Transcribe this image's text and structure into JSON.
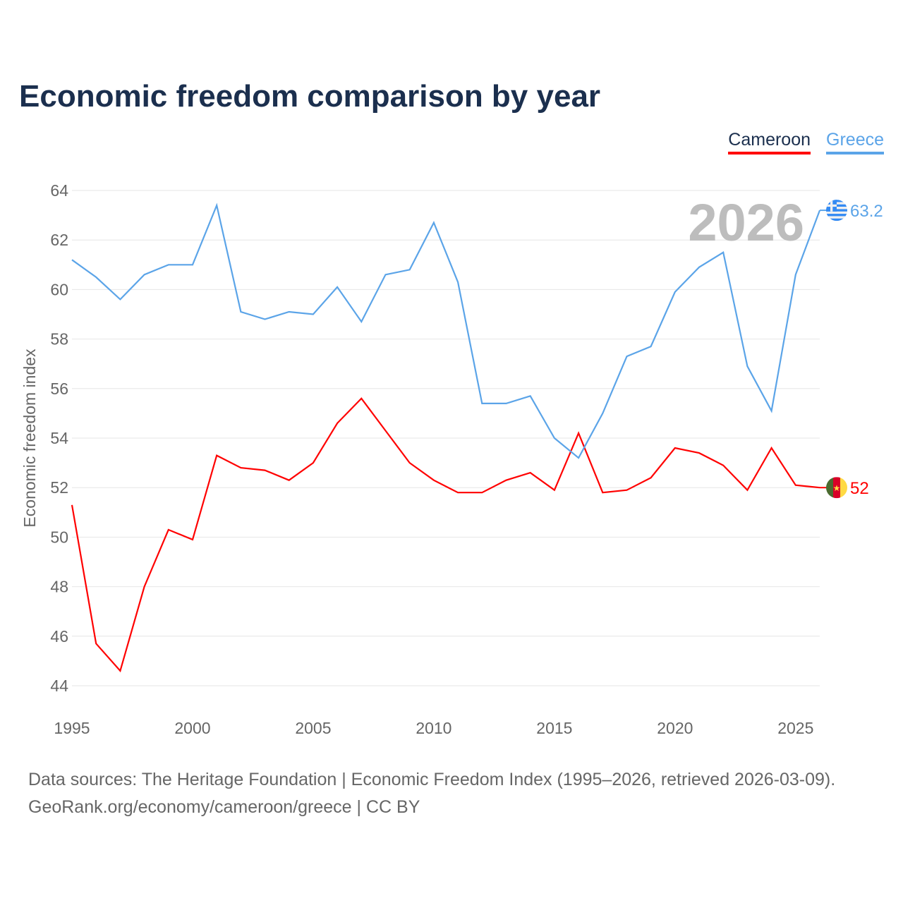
{
  "chart_data": {
    "type": "line",
    "title": "Economic freedom comparison by year",
    "xlabel": "",
    "ylabel": "Economic freedom index",
    "ylim": [
      44,
      64
    ],
    "xlim": [
      1995,
      2026
    ],
    "yticks": [
      44,
      46,
      48,
      50,
      52,
      54,
      56,
      58,
      60,
      62,
      64
    ],
    "xticks": [
      1995,
      2000,
      2005,
      2010,
      2015,
      2020,
      2025
    ],
    "grid": true,
    "legend_position": "top-right",
    "year_label": "2026",
    "x": [
      1995,
      1996,
      1997,
      1998,
      1999,
      2000,
      2001,
      2002,
      2003,
      2004,
      2005,
      2006,
      2007,
      2008,
      2009,
      2010,
      2011,
      2012,
      2013,
      2014,
      2015,
      2016,
      2017,
      2018,
      2019,
      2020,
      2021,
      2022,
      2023,
      2024,
      2025,
      2026
    ],
    "series": [
      {
        "name": "Cameroon",
        "color": "#ff0000",
        "end_label": "52",
        "values": [
          51.3,
          45.7,
          44.6,
          48.0,
          50.3,
          49.9,
          53.3,
          52.8,
          52.7,
          52.3,
          53.0,
          54.6,
          55.6,
          54.3,
          53.0,
          52.3,
          51.8,
          51.8,
          52.3,
          52.6,
          51.9,
          54.2,
          51.8,
          51.9,
          52.4,
          53.6,
          53.4,
          52.9,
          51.9,
          53.6,
          52.1,
          52.0
        ]
      },
      {
        "name": "Greece",
        "color": "#5ba4e8",
        "end_label": "63.2",
        "values": [
          61.2,
          60.5,
          59.6,
          60.6,
          61.0,
          61.0,
          63.4,
          59.1,
          58.8,
          59.1,
          59.0,
          60.1,
          58.7,
          60.6,
          60.8,
          62.7,
          60.3,
          55.4,
          55.4,
          55.7,
          54.0,
          53.2,
          55.0,
          57.3,
          57.7,
          59.9,
          60.9,
          61.5,
          56.9,
          55.1,
          60.6,
          63.2
        ]
      }
    ]
  },
  "footer": {
    "line1": "Data sources: The Heritage Foundation | Economic Freedom Index (1995–2026, retrieved 2026-03-09).",
    "line2": "GeoRank.org/economy/cameroon/greece | CC BY"
  }
}
